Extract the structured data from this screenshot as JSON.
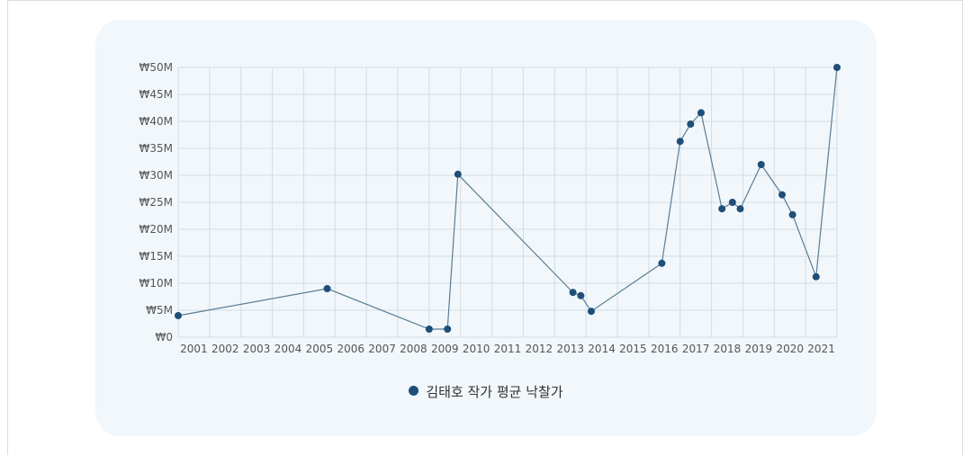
{
  "colors": {
    "series": "#1f4e79",
    "line": "#5a7d94",
    "grid": "#d5dde3",
    "card": "#f1f7fb"
  },
  "chart_data": {
    "type": "line",
    "title": "",
    "xlabel": "",
    "ylabel": "",
    "x_ticks": [
      "2001",
      "2002",
      "2003",
      "2004",
      "2005",
      "2006",
      "2007",
      "2008",
      "2009",
      "2010",
      "2011",
      "2012",
      "2013",
      "2014",
      "2015",
      "2016",
      "2017",
      "2018",
      "2019",
      "2020",
      "2021"
    ],
    "y_ticks": [
      "₩0",
      "₩5M",
      "₩10M",
      "₩15M",
      "₩20M",
      "₩25M",
      "₩30M",
      "₩35M",
      "₩40M",
      "₩45M",
      "₩50M"
    ],
    "ylim": [
      0,
      50000000
    ],
    "grid": true,
    "legend_position": "bottom",
    "series": [
      {
        "name": "김태호 작가 평균 낙찰가",
        "points": [
          {
            "x": "2001-01",
            "y": 4000000
          },
          {
            "x": "2005-10",
            "y": 9000000
          },
          {
            "x": "2009-01",
            "y": 1500000
          },
          {
            "x": "2009-08",
            "y": 1500000
          },
          {
            "x": "2009-12",
            "y": 30200000
          },
          {
            "x": "2013-08",
            "y": 8300000
          },
          {
            "x": "2013-11",
            "y": 7700000
          },
          {
            "x": "2014-03",
            "y": 4800000
          },
          {
            "x": "2016-06",
            "y": 13700000
          },
          {
            "x": "2017-01",
            "y": 36300000
          },
          {
            "x": "2017-05",
            "y": 39500000
          },
          {
            "x": "2017-09",
            "y": 41600000
          },
          {
            "x": "2018-05",
            "y": 23800000
          },
          {
            "x": "2018-09",
            "y": 25000000
          },
          {
            "x": "2018-12",
            "y": 23800000
          },
          {
            "x": "2019-08",
            "y": 32000000
          },
          {
            "x": "2020-04",
            "y": 26400000
          },
          {
            "x": "2020-08",
            "y": 22700000
          },
          {
            "x": "2021-05",
            "y": 11200000
          },
          {
            "x": "2022-03",
            "y": 50000000
          }
        ]
      }
    ]
  }
}
